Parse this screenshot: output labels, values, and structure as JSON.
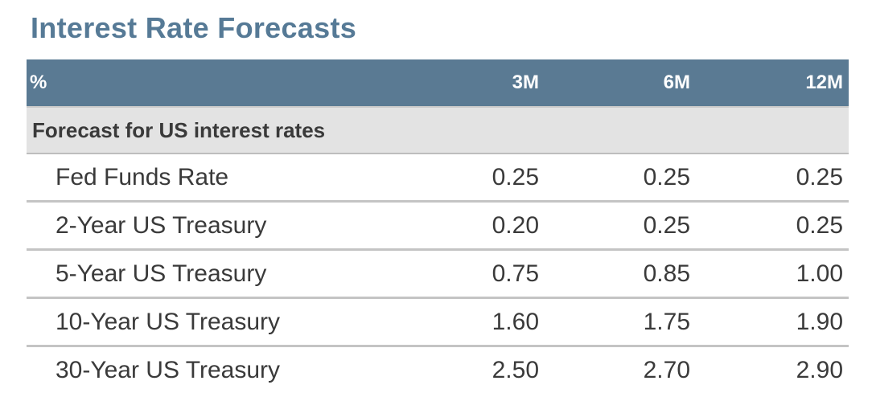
{
  "title": "Interest Rate Forecasts",
  "table": {
    "headers": {
      "unit": "%",
      "col1": "3M",
      "col2": "6M",
      "col3": "12M"
    },
    "section": "Forecast for US interest rates",
    "rows": [
      {
        "label": "Fed Funds Rate",
        "m3": "0.25",
        "m6": "0.25",
        "m12": "0.25"
      },
      {
        "label": "2-Year US Treasury",
        "m3": "0.20",
        "m6": "0.25",
        "m12": "0.25"
      },
      {
        "label": "5-Year US Treasury",
        "m3": "0.75",
        "m6": "0.85",
        "m12": "1.00"
      },
      {
        "label": "10-Year US Treasury",
        "m3": "1.60",
        "m6": "1.75",
        "m12": "1.90"
      },
      {
        "label": "30-Year US Treasury",
        "m3": "2.50",
        "m6": "2.70",
        "m12": "2.90"
      }
    ]
  }
}
